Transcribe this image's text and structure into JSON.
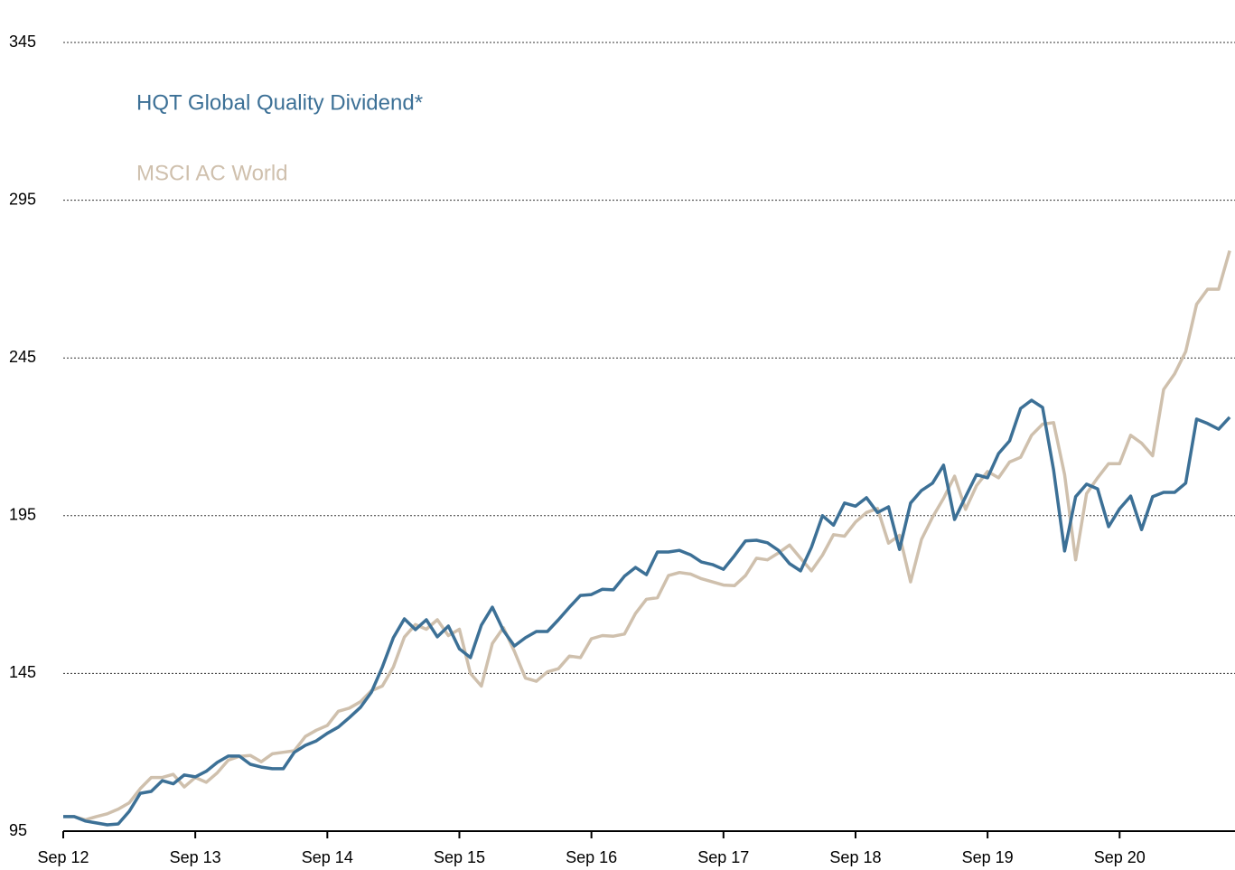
{
  "chart_data": {
    "type": "line",
    "categories": [
      "Sep 12",
      null,
      null,
      null,
      null,
      null,
      null,
      null,
      null,
      null,
      null,
      null,
      "Sep 13",
      null,
      null,
      null,
      null,
      null,
      null,
      null,
      null,
      null,
      null,
      null,
      "Sep 14",
      null,
      null,
      null,
      null,
      null,
      null,
      null,
      null,
      null,
      null,
      null,
      "Sep 15",
      null,
      null,
      null,
      null,
      null,
      null,
      null,
      null,
      null,
      null,
      null,
      "Sep 16",
      null,
      null,
      null,
      null,
      null,
      null,
      null,
      null,
      null,
      null,
      null,
      "Sep 17",
      null,
      null,
      null,
      null,
      null,
      null,
      null,
      null,
      null,
      null,
      null,
      "Sep 18",
      null,
      null,
      null,
      null,
      null,
      null,
      null,
      null,
      null,
      null,
      null,
      "Sep 19",
      null,
      null,
      null,
      null,
      null,
      null,
      null,
      null,
      null,
      null,
      null,
      "Sep 20",
      null,
      null,
      null,
      null,
      null,
      null,
      null,
      null,
      null,
      null
    ],
    "series": [
      {
        "name": "HQT Global Quality Dividend*",
        "color": "#3c7096",
        "values": [
          99.6,
          99.6,
          98.2,
          97.6,
          97,
          97.3,
          101.3,
          107,
          107.6,
          111,
          110,
          112.8,
          112.2,
          114,
          116.8,
          118.8,
          118.8,
          116.2,
          115.3,
          114.8,
          114.8,
          120,
          122.2,
          123.6,
          126,
          128,
          131,
          134.2,
          139,
          147,
          156.3,
          162.3,
          158.9,
          162,
          156.6,
          160,
          152.8,
          150,
          160.3,
          166,
          158.6,
          153.7,
          156.3,
          158.3,
          158.3,
          162,
          166,
          169.7,
          170,
          171.7,
          171.5,
          175.8,
          178.6,
          176.3,
          183.5,
          183.5,
          184,
          182.6,
          180.3,
          179.5,
          178,
          182.3,
          187,
          187.2,
          186.4,
          184,
          179.8,
          177.5,
          185,
          195,
          192,
          199,
          198,
          200.7,
          196,
          197.8,
          184.3,
          199,
          203,
          205.3,
          211,
          193.8,
          201,
          208,
          207,
          214.7,
          218.7,
          229,
          231.6,
          229.3,
          209.5,
          183.8,
          201,
          205,
          203.5,
          191.5,
          197.2,
          201.2,
          190.6,
          201,
          202.4,
          202.4,
          205.3,
          225.6,
          224.2,
          222.4,
          226.2
        ]
      },
      {
        "name": "MSCI AC World",
        "color": "#cfc0ad",
        "values": [
          99.6,
          99.6,
          98.6,
          99.6,
          100.5,
          102,
          104,
          108.5,
          112,
          112,
          113,
          109,
          112,
          110.5,
          113.5,
          117.5,
          118.7,
          119,
          117,
          119.5,
          120,
          120.5,
          125,
          127,
          128.5,
          133,
          134,
          136,
          139.5,
          141,
          147,
          156.5,
          160.5,
          159,
          162,
          157,
          159,
          145,
          141,
          154.5,
          159.5,
          152,
          143.5,
          142.5,
          145.5,
          146.5,
          150.5,
          150,
          156,
          157,
          156.8,
          157.5,
          164,
          168.5,
          169,
          176,
          177,
          176.5,
          175,
          174,
          173,
          172.8,
          176,
          181.5,
          181,
          183.2,
          185.7,
          181.5,
          177.5,
          182.5,
          189,
          188.5,
          193,
          196,
          197.3,
          186.3,
          188.8,
          174,
          187.5,
          194.5,
          200.5,
          207.5,
          197,
          204.5,
          209,
          207,
          212,
          213.5,
          220.5,
          224,
          224.5,
          208,
          181,
          202,
          207,
          211.5,
          211.5,
          220.5,
          218,
          214,
          235,
          240,
          247,
          262,
          266.8,
          266.8,
          279
        ]
      }
    ],
    "ylim": [
      95,
      345
    ],
    "yticks": [
      95,
      145,
      195,
      245,
      295,
      345
    ],
    "grid": true
  }
}
